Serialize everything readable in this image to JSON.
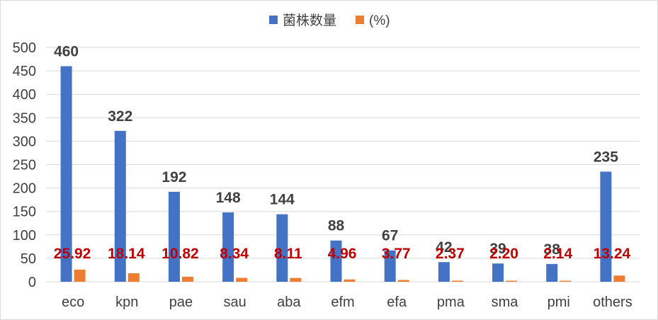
{
  "chart_data": {
    "type": "bar",
    "title": "",
    "xlabel": "",
    "ylabel": "",
    "categories": [
      "eco",
      "kpn",
      "pae",
      "sau",
      "aba",
      "efm",
      "efa",
      "pma",
      "sma",
      "pmi",
      "others"
    ],
    "series": [
      {
        "name": "菌株数量",
        "color": "#4472c4",
        "values": [
          460,
          322,
          192,
          148,
          144,
          88,
          67,
          42,
          39,
          38,
          235
        ],
        "data_labels": [
          "460",
          "322",
          "192",
          "148",
          "144",
          "88",
          "67",
          "42",
          "39",
          "38",
          "235"
        ]
      },
      {
        "name": "(%)",
        "color": "#ed7d31",
        "values": [
          25.92,
          18.14,
          10.82,
          8.34,
          8.11,
          4.96,
          3.77,
          2.37,
          2.2,
          2.14,
          13.24
        ],
        "data_labels": [
          "25.92",
          "18.14",
          "10.82",
          "8.34",
          "8.11",
          "4.96",
          "3.77",
          "2.37",
          "2.20",
          "2.14",
          "13.24"
        ]
      }
    ],
    "ylim": [
      0,
      500
    ],
    "yticks": [
      "0",
      "50",
      "100",
      "150",
      "200",
      "250",
      "300",
      "350",
      "400",
      "450",
      "500"
    ],
    "grid": true,
    "legend_position": "top-center",
    "colors": {
      "grid": "#d9d9d9",
      "axis_text": "#404040",
      "count_label": "#404040",
      "pct_label": "#c00000"
    }
  }
}
